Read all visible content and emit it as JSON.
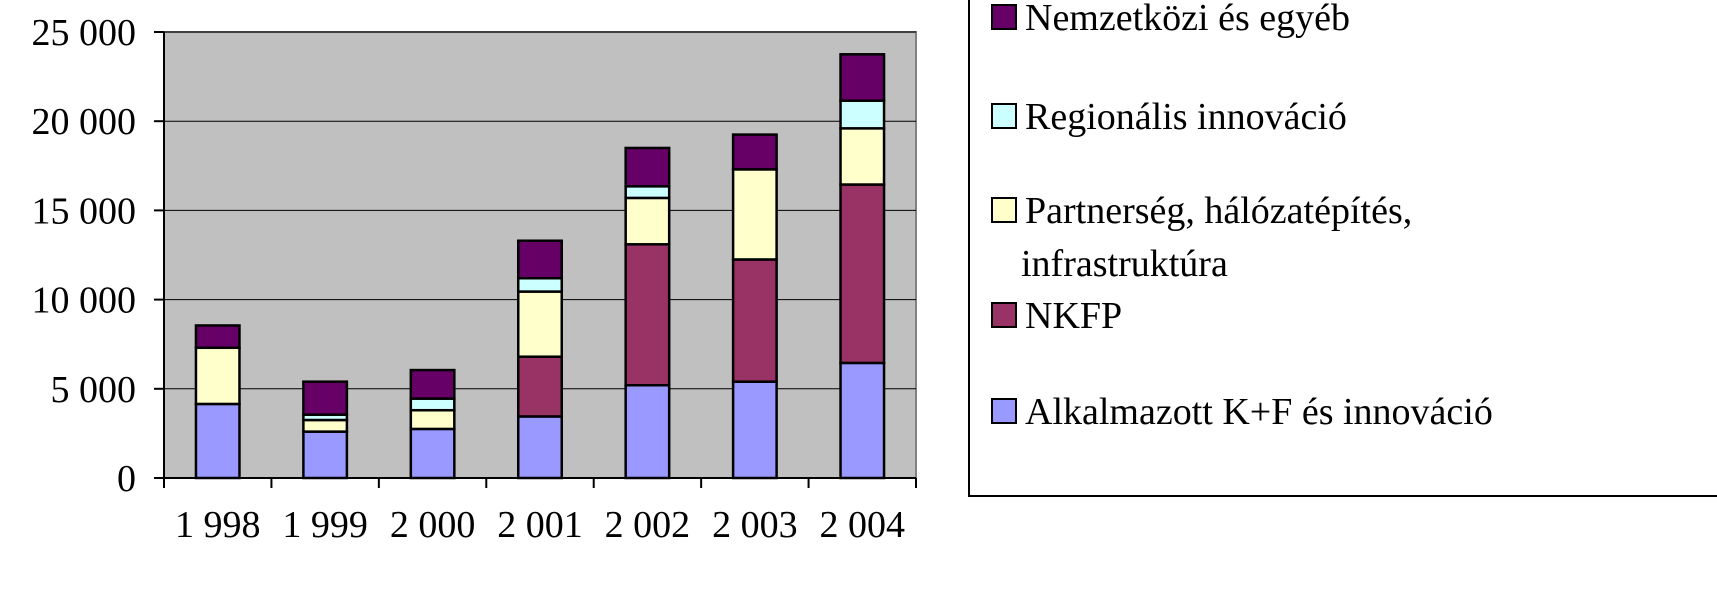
{
  "chart_data": {
    "type": "bar",
    "stacked": true,
    "categories": [
      "1 998",
      "1 999",
      "2 000",
      "2 001",
      "2 002",
      "2 003",
      "2 004"
    ],
    "yticks": [
      "0",
      "5 000",
      "10 000",
      "15 000",
      "20 000",
      "25 000"
    ],
    "ylim": [
      0,
      25000
    ],
    "grid": true,
    "legend_position": "right",
    "series": [
      {
        "name": "Alkalmazott K+F és innováció",
        "color": "#9999ff",
        "values": [
          4150,
          2600,
          2750,
          3450,
          5200,
          5400,
          6450
        ]
      },
      {
        "name": "NKFP",
        "color": "#993366",
        "values": [
          0,
          0,
          0,
          3350,
          7900,
          6850,
          10000
        ]
      },
      {
        "name": "Partnerség, hálózatépítés, infrastruktúra",
        "color": "#ffffcc",
        "values": [
          3150,
          650,
          1050,
          3650,
          2600,
          5050,
          3150
        ]
      },
      {
        "name": "Regionális innováció",
        "color": "#ccffff",
        "values": [
          0,
          300,
          650,
          750,
          650,
          0,
          1550
        ]
      },
      {
        "name": "Nemzetközi és egyéb",
        "color": "#660066",
        "values": [
          1250,
          1850,
          1600,
          2100,
          2150,
          1950,
          2600
        ]
      }
    ]
  },
  "legend": {
    "items": [
      {
        "lines": [
          "Nemzetközi és egyéb"
        ],
        "color": "#660066"
      },
      {
        "lines": [
          "Regionális innováció"
        ],
        "color": "#ccffff"
      },
      {
        "lines": [
          "Partnerség, hálózatépítés,",
          "infrastruktúra"
        ],
        "color": "#ffffcc"
      },
      {
        "lines": [
          "NKFP"
        ],
        "color": "#993366"
      },
      {
        "lines": [
          "Alkalmazott K+F és innováció"
        ],
        "color": "#9999ff"
      }
    ]
  },
  "colors": {
    "plot_background": "#c0c0c0",
    "gridline": "#000000"
  }
}
